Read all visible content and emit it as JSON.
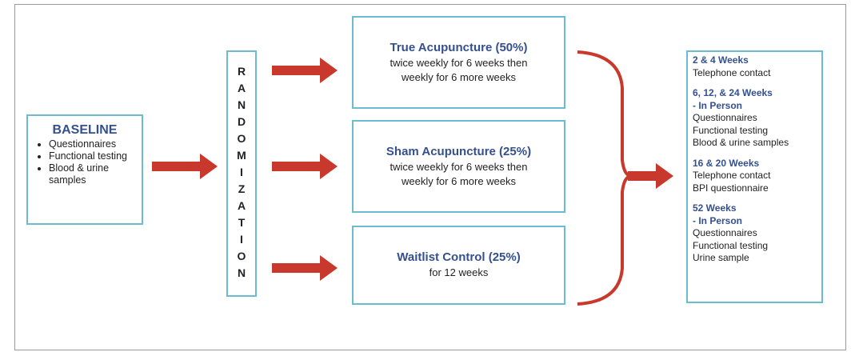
{
  "baseline": {
    "title": "BASELINE",
    "items": [
      "Questionnaires",
      "Functional testing",
      "Blood & urine samples"
    ]
  },
  "randomization": "RANDOMIZATION",
  "arms": [
    {
      "title": "True Acupuncture (50%)",
      "lines": [
        "twice weekly for 6 weeks then",
        "weekly for 6 more weeks"
      ]
    },
    {
      "title": "Sham Acupuncture (25%)",
      "lines": [
        "twice weekly for 6 weeks then",
        "weekly for 6 more weeks"
      ]
    },
    {
      "title": "Waitlist Control (25%)",
      "lines": [
        "for 12 weeks"
      ]
    }
  ],
  "followup": [
    {
      "heading": [
        "2 & 4 Weeks"
      ],
      "items": [
        "Telephone contact"
      ]
    },
    {
      "heading": [
        "6, 12, & 24 Weeks",
        "- In Person"
      ],
      "items": [
        "Questionnaires",
        "Functional testing",
        "Blood & urine samples"
      ]
    },
    {
      "heading": [
        "16 & 20 Weeks"
      ],
      "items": [
        "Telephone contact",
        "BPI questionnaire"
      ]
    },
    {
      "heading": [
        "52 Weeks",
        "- In Person"
      ],
      "items": [
        "Questionnaires",
        "Functional testing",
        "Urine sample"
      ]
    }
  ]
}
